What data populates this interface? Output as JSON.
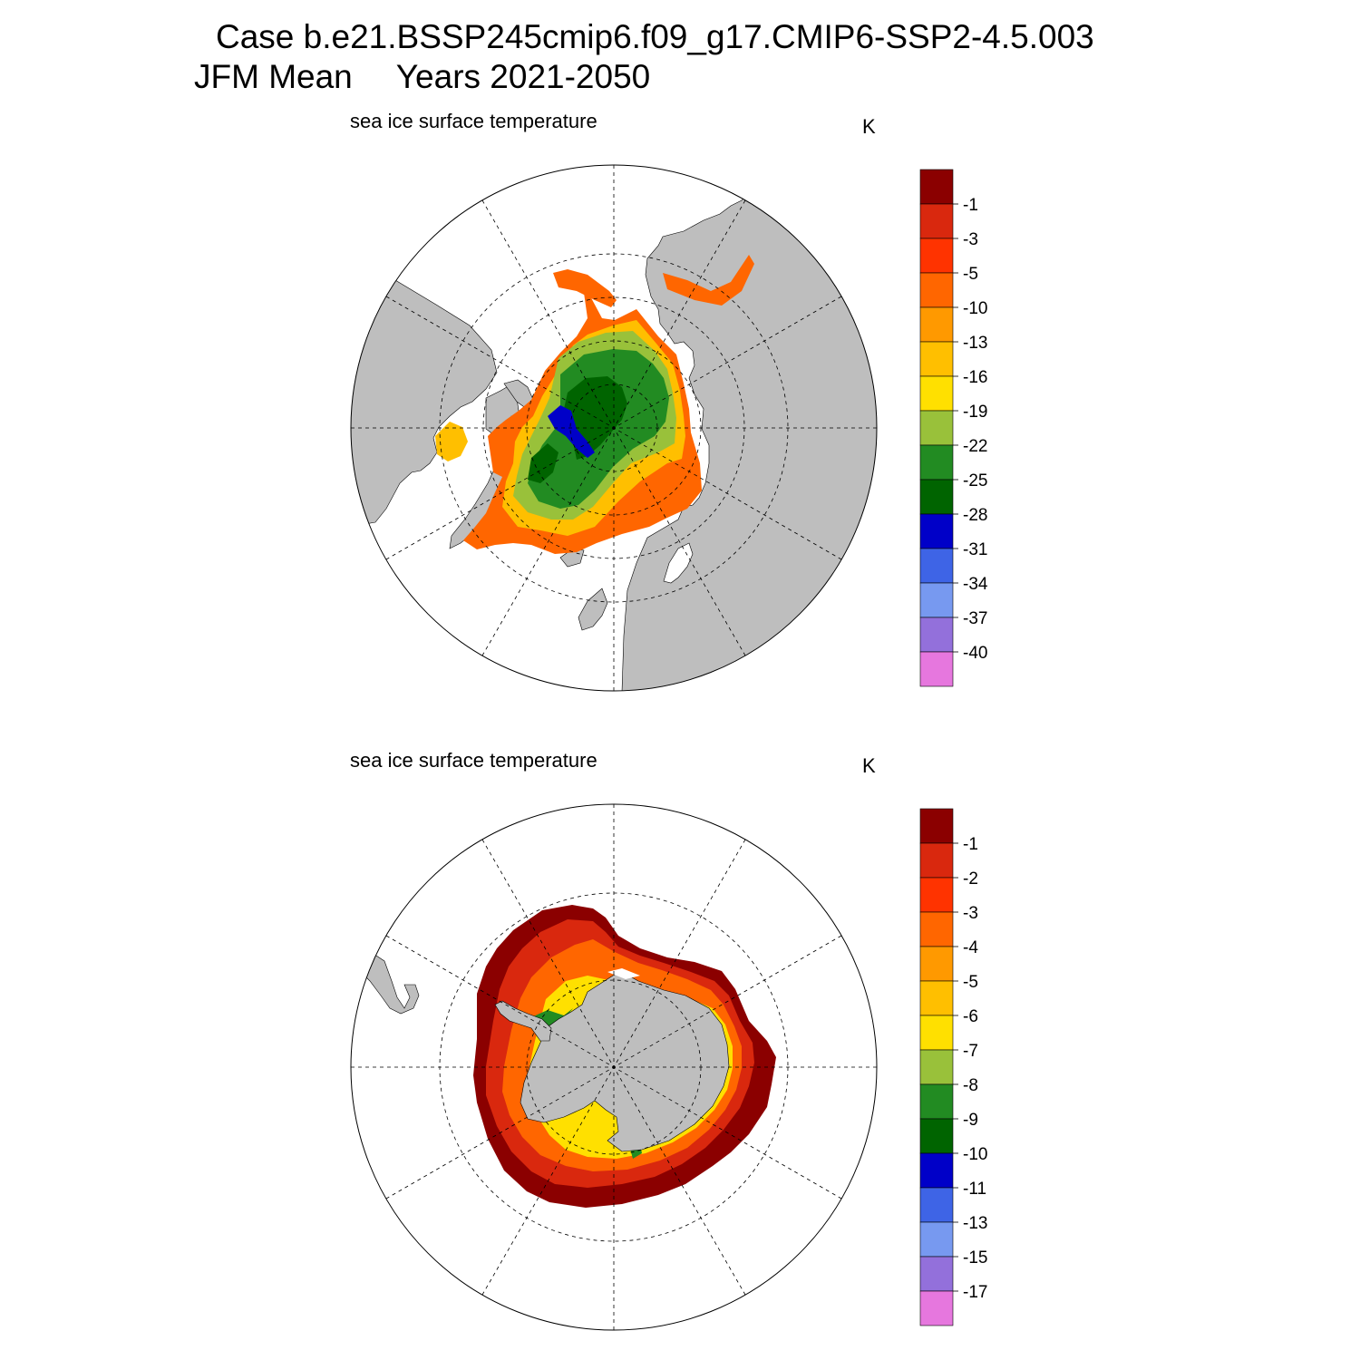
{
  "header": {
    "case_line": "Case b.e21.BSSP245cmip6.f09_g17.CMIP6-SSP2-4.5.003",
    "season": "JFM Mean",
    "years": "Years 2021-2050"
  },
  "colors": {
    "land": "#bebebe",
    "ocean": "#ffffff",
    "scale": [
      "#8b0000",
      "#d9280e",
      "#ff3300",
      "#ff6600",
      "#ff9900",
      "#ffbf00",
      "#ffe000",
      "#99c13a",
      "#228b22",
      "#006400",
      "#0000c8",
      "#3e64e6",
      "#7799f0",
      "#9370db",
      "#e677de"
    ]
  },
  "panels": [
    {
      "id": "nh",
      "title": "sea ice surface temperature",
      "units": "K",
      "hemisphere": "north",
      "colorbar_labels": [
        "-1",
        "-3",
        "-5",
        "-10",
        "-13",
        "-16",
        "-19",
        "-22",
        "-25",
        "-28",
        "-31",
        "-34",
        "-37",
        "-40"
      ]
    },
    {
      "id": "sh",
      "title": "sea ice surface temperature",
      "units": "K",
      "hemisphere": "south",
      "colorbar_labels": [
        "-1",
        "-2",
        "-3",
        "-4",
        "-5",
        "-6",
        "-7",
        "-8",
        "-9",
        "-10",
        "-11",
        "-13",
        "-15",
        "-17"
      ]
    }
  ]
}
